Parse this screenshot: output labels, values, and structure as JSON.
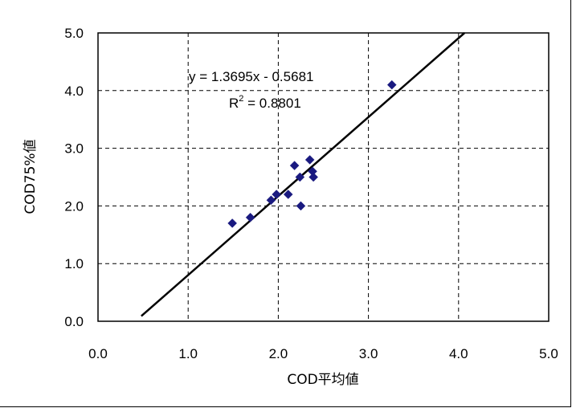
{
  "chart_data": {
    "type": "scatter",
    "title": "",
    "xlabel": "COD平均値",
    "ylabel": "COD75%値",
    "xlim": [
      0,
      5
    ],
    "ylim": [
      0,
      5
    ],
    "x_ticks": [
      "0.0",
      "1.0",
      "2.0",
      "3.0",
      "4.0",
      "5.0"
    ],
    "y_ticks": [
      "0.0",
      "1.0",
      "2.0",
      "3.0",
      "4.0",
      "5.0"
    ],
    "grid": true,
    "grid_style": "dashed",
    "legend": "none",
    "marker_color": "#1a1a80",
    "marker": "diamond",
    "points": [
      {
        "x": 1.49,
        "y": 1.7
      },
      {
        "x": 1.69,
        "y": 1.8
      },
      {
        "x": 1.92,
        "y": 2.1
      },
      {
        "x": 1.98,
        "y": 2.2
      },
      {
        "x": 2.11,
        "y": 2.2
      },
      {
        "x": 2.18,
        "y": 2.7
      },
      {
        "x": 2.24,
        "y": 2.5
      },
      {
        "x": 2.25,
        "y": 2.0
      },
      {
        "x": 2.35,
        "y": 2.8
      },
      {
        "x": 2.38,
        "y": 2.6
      },
      {
        "x": 2.39,
        "y": 2.5
      },
      {
        "x": 3.26,
        "y": 4.1
      }
    ],
    "trendline": {
      "slope": 1.3695,
      "intercept": -0.5681,
      "x_start": 0.48,
      "color": "#000000",
      "equation": "y = 1.3695x - 0.5681",
      "r2_base": "R",
      "r2_sup": "2",
      "r2_value": " = 0.8801"
    }
  }
}
